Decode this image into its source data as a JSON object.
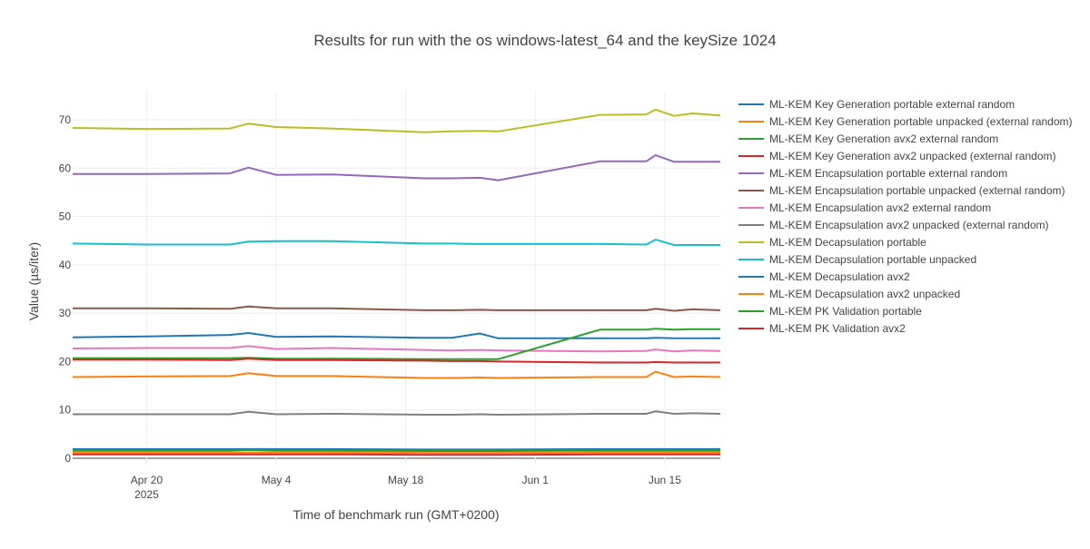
{
  "chart_data": {
    "type": "line",
    "title": "Results for run with the os windows-latest_64 and the keySize 1024",
    "xlabel": "Time of benchmark run (GMT+0200)",
    "ylabel": "Value (µs/iter)",
    "x_range": [
      "2025-04-12",
      "2025-06-21"
    ],
    "ylim": [
      -1.5,
      76
    ],
    "x_ticks": [
      {
        "date": "2025-04-20",
        "label": "Apr 20",
        "sublabel": "2025"
      },
      {
        "date": "2025-05-04",
        "label": "May 4",
        "sublabel": ""
      },
      {
        "date": "2025-05-18",
        "label": "May 18",
        "sublabel": ""
      },
      {
        "date": "2025-06-01",
        "label": "Jun 1",
        "sublabel": ""
      },
      {
        "date": "2025-06-15",
        "label": "Jun 15",
        "sublabel": ""
      }
    ],
    "y_ticks": [
      0,
      10,
      20,
      30,
      40,
      50,
      60,
      70
    ],
    "grid": true,
    "legend_position": "right",
    "x": [
      "2025-04-12",
      "2025-04-20",
      "2025-04-29",
      "2025-05-01",
      "2025-05-04",
      "2025-05-10",
      "2025-05-20",
      "2025-05-23",
      "2025-05-26",
      "2025-05-28",
      "2025-06-08",
      "2025-06-13",
      "2025-06-14",
      "2025-06-16",
      "2025-06-18",
      "2025-06-21"
    ],
    "series": [
      {
        "name": "ML-KEM Key Generation portable external random",
        "color": "#1f77b4",
        "values": [
          1.9,
          1.9,
          1.9,
          1.9,
          1.9,
          1.9,
          1.8,
          1.8,
          1.8,
          1.8,
          1.9,
          1.9,
          1.9,
          1.9,
          1.9,
          1.9
        ]
      },
      {
        "name": "ML-KEM Key Generation portable unpacked (external random)",
        "color": "#ff7f0e",
        "values": [
          1.2,
          1.2,
          1.2,
          1.2,
          1.2,
          1.2,
          1.1,
          1.1,
          1.1,
          1.1,
          1.2,
          1.2,
          1.2,
          1.2,
          1.2,
          1.2
        ]
      },
      {
        "name": "ML-KEM Key Generation avx2 external random",
        "color": "#2ca02c",
        "values": [
          1.6,
          1.6,
          1.6,
          1.7,
          1.6,
          1.6,
          1.5,
          1.5,
          1.5,
          1.5,
          1.6,
          1.6,
          1.6,
          1.6,
          1.6,
          1.6
        ]
      },
      {
        "name": "ML-KEM Key Generation avx2 unpacked (external random)",
        "color": "#d62728",
        "values": [
          0.8,
          0.8,
          0.8,
          0.8,
          0.8,
          0.8,
          0.7,
          0.7,
          0.7,
          0.7,
          0.8,
          0.8,
          0.8,
          0.8,
          0.8,
          0.8
        ]
      },
      {
        "name": "ML-KEM Encapsulation portable external random",
        "color": "#9467bd",
        "values": [
          58.8,
          58.8,
          58.9,
          60.1,
          58.6,
          58.7,
          57.9,
          57.9,
          58.0,
          57.5,
          61.4,
          61.4,
          62.7,
          61.3,
          61.3,
          61.3
        ]
      },
      {
        "name": "ML-KEM Encapsulation portable unpacked (external random)",
        "color": "#8c564b",
        "values": [
          31.0,
          31.0,
          30.9,
          31.4,
          31.0,
          31.0,
          30.6,
          30.6,
          30.7,
          30.6,
          30.6,
          30.6,
          30.9,
          30.5,
          30.8,
          30.6
        ]
      },
      {
        "name": "ML-KEM Encapsulation avx2 external random",
        "color": "#e377c2",
        "values": [
          22.7,
          22.8,
          22.8,
          23.2,
          22.6,
          22.8,
          22.4,
          22.3,
          22.4,
          22.3,
          22.1,
          22.2,
          22.5,
          22.1,
          22.3,
          22.2
        ]
      },
      {
        "name": "ML-KEM Encapsulation avx2 unpacked (external random)",
        "color": "#7f7f7f",
        "values": [
          9.1,
          9.1,
          9.1,
          9.6,
          9.1,
          9.2,
          9.0,
          9.0,
          9.1,
          9.0,
          9.2,
          9.2,
          9.7,
          9.2,
          9.3,
          9.2
        ]
      },
      {
        "name": "ML-KEM Decapsulation portable",
        "color": "#bcbd22",
        "values": [
          68.3,
          68.1,
          68.2,
          69.2,
          68.5,
          68.2,
          67.4,
          67.6,
          67.7,
          67.6,
          71.0,
          71.1,
          72.1,
          70.8,
          71.3,
          70.9
        ]
      },
      {
        "name": "ML-KEM Decapsulation portable unpacked",
        "color": "#17becf",
        "values": [
          44.4,
          44.2,
          44.2,
          44.8,
          44.9,
          44.9,
          44.4,
          44.4,
          44.3,
          44.3,
          44.3,
          44.2,
          45.2,
          44.1,
          44.1,
          44.1
        ]
      },
      {
        "name": "ML-KEM Decapsulation avx2",
        "color": "#1f77b4",
        "values": [
          25.0,
          25.2,
          25.5,
          25.9,
          25.1,
          25.2,
          24.9,
          24.9,
          25.8,
          24.8,
          24.8,
          24.8,
          24.9,
          24.8,
          24.8,
          24.8
        ]
      },
      {
        "name": "ML-KEM Decapsulation avx2 unpacked",
        "color": "#ff7f0e",
        "values": [
          16.8,
          16.9,
          17.0,
          17.6,
          17.0,
          17.0,
          16.6,
          16.6,
          16.7,
          16.6,
          16.8,
          16.8,
          17.9,
          16.8,
          16.9,
          16.8
        ]
      },
      {
        "name": "ML-KEM PK Validation portable",
        "color": "#2ca02c",
        "values": [
          20.7,
          20.7,
          20.7,
          20.8,
          20.6,
          20.6,
          20.5,
          20.5,
          20.5,
          20.5,
          26.6,
          26.6,
          26.8,
          26.6,
          26.7,
          26.7
        ]
      },
      {
        "name": "ML-KEM PK Validation avx2",
        "color": "#d62728",
        "values": [
          20.4,
          20.4,
          20.3,
          20.6,
          20.3,
          20.3,
          20.2,
          20.1,
          20.1,
          20.0,
          19.8,
          19.8,
          19.9,
          19.8,
          19.8,
          19.8
        ]
      }
    ]
  }
}
